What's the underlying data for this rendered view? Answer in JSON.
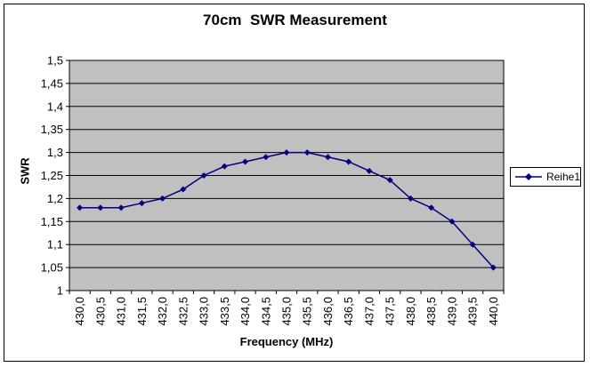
{
  "chart_data": {
    "type": "line",
    "title": "70cm  SWR Measurement",
    "xlabel": "Frequency (MHz)",
    "ylabel": "SWR",
    "categories": [
      "430,0",
      "430,5",
      "431,0",
      "431,5",
      "432,0",
      "432,5",
      "433,0",
      "433,5",
      "434,0",
      "434,5",
      "435,0",
      "435,5",
      "436,0",
      "436,5",
      "437,0",
      "437,5",
      "438,0",
      "438,5",
      "439,0",
      "439,5",
      "440,0"
    ],
    "series": [
      {
        "name": "Reihe1",
        "values": [
          1.18,
          1.18,
          1.18,
          1.19,
          1.2,
          1.22,
          1.25,
          1.27,
          1.28,
          1.29,
          1.3,
          1.3,
          1.29,
          1.28,
          1.26,
          1.24,
          1.2,
          1.18,
          1.15,
          1.1,
          1.05
        ]
      }
    ],
    "ylim": [
      1.0,
      1.5
    ],
    "y_tick_labels": [
      "1",
      "1,05",
      "1,1",
      "1,15",
      "1,2",
      "1,25",
      "1,3",
      "1,35",
      "1,4",
      "1,45",
      "1,5"
    ],
    "grid": true,
    "legend_position": "right",
    "colors": {
      "line": "#000080",
      "marker": "#000080",
      "plot_bg": "#C0C0C0",
      "grid": "#000000",
      "axis": "#000000",
      "chart_bg": "#FFFFFF",
      "text": "#000000"
    }
  }
}
